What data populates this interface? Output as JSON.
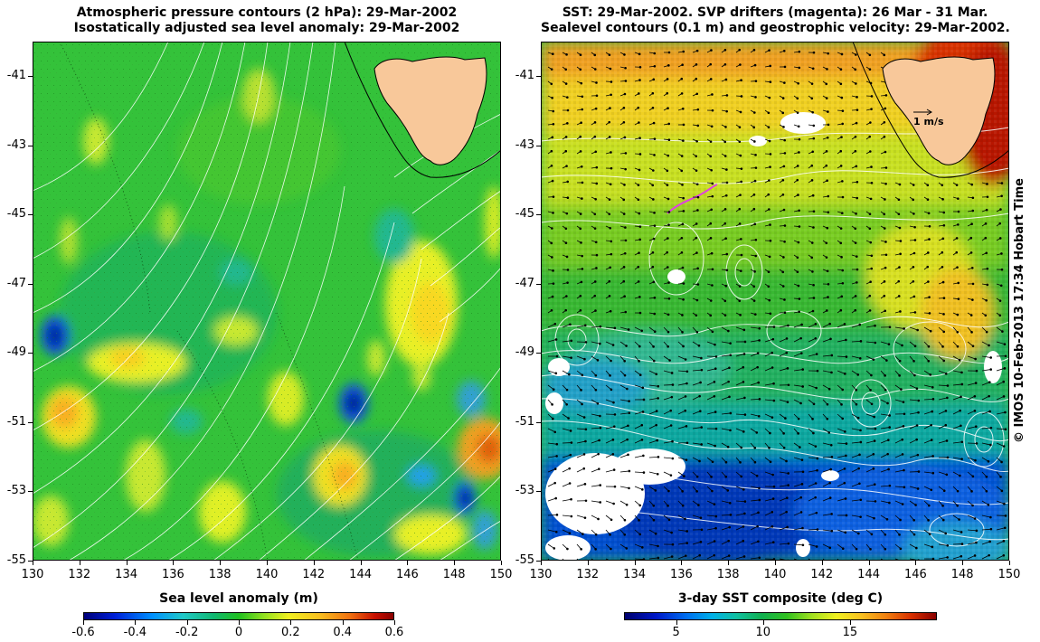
{
  "left_panel": {
    "title_line1": "Atmospheric pressure contours (2 hPa): 29-Mar-2002",
    "title_line2": "Isostatically adjusted sea level anomaly: 29-Mar-2002",
    "colorbar_title": "Sea level anomaly (m)",
    "colorbar_ticks": [
      "-0.6",
      "-0.4",
      "-0.2",
      "0",
      "0.2",
      "0.4",
      "0.6"
    ],
    "colorbar_range": [
      -0.6,
      0.6
    ]
  },
  "right_panel": {
    "title_line1": "SST: 29-Mar-2002. SVP drifters (magenta): 26 Mar - 31 Mar.",
    "title_line2": "Sealevel contours (0.1 m) and geostrophic velocity: 29-Mar-2002.",
    "colorbar_title": "3-day SST composite (deg C)",
    "colorbar_ticks": [
      "5",
      "10",
      "15"
    ],
    "colorbar_range": [
      2,
      20
    ],
    "velocity_scale_label": "1 m/s"
  },
  "axes": {
    "x_ticks": [
      "130",
      "132",
      "134",
      "136",
      "138",
      "140",
      "142",
      "144",
      "146",
      "148",
      "150"
    ],
    "y_ticks": [
      "-41",
      "-43",
      "-45",
      "-47",
      "-49",
      "-51",
      "-53",
      "-55"
    ],
    "lon_range": [
      130,
      150
    ],
    "lat_range": [
      -55,
      -40
    ]
  },
  "landmass": "Tasmania",
  "copyright": "© IMOS 10-Feb-2013 17:34 Hobart Time",
  "colors": {
    "land": "#f8c89a",
    "contour": "#ffffff",
    "drifter": "#e040e0",
    "arrow": "#000000"
  }
}
